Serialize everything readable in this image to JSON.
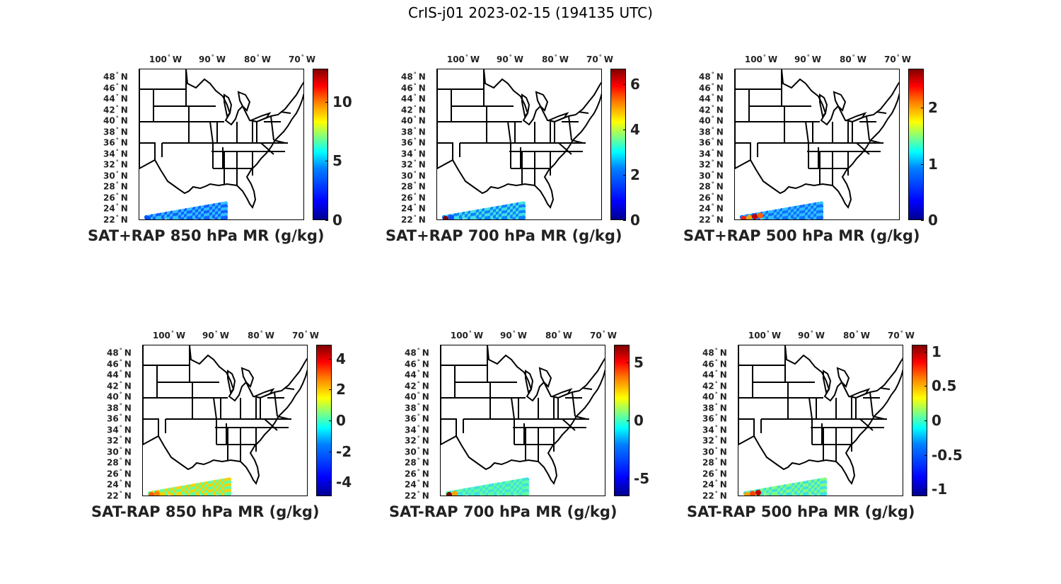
{
  "title": "CrIS-j01 2023-02-15 (194135 UTC)",
  "lon_ticks": [
    "100",
    "90",
    "80",
    "70"
  ],
  "lon_suffix": "W",
  "lat_ticks": [
    "48",
    "46",
    "44",
    "42",
    "40",
    "38",
    "36",
    "34",
    "32",
    "30",
    "28",
    "26",
    "24",
    "22"
  ],
  "lat_suffix": "N",
  "panels": [
    {
      "label": "SAT+RAP 850 hPa MR (g/kg)",
      "cbar_ticks": [
        "10",
        "5",
        "0"
      ],
      "cbar_values": [
        10,
        5,
        0
      ],
      "cbar_range": [
        0,
        12.8
      ]
    },
    {
      "label": "SAT+RAP 700 hPa MR (g/kg)",
      "cbar_ticks": [
        "6",
        "4",
        "2",
        "0"
      ],
      "cbar_values": [
        6,
        4,
        2,
        0
      ],
      "cbar_range": [
        0,
        6.7
      ]
    },
    {
      "label": "SAT+RAP 500 hPa MR (g/kg)",
      "cbar_ticks": [
        "2",
        "1",
        "0"
      ],
      "cbar_values": [
        2,
        1,
        0
      ],
      "cbar_range": [
        0,
        2.7
      ]
    },
    {
      "label": "SAT-RAP 850 hPa MR (g/kg)",
      "cbar_ticks": [
        "4",
        "2",
        "0",
        "-2",
        "-4"
      ],
      "cbar_values": [
        4,
        2,
        0,
        -2,
        -4
      ],
      "cbar_range": [
        -4.9,
        4.9
      ]
    },
    {
      "label": "SAT-RAP 700 hPa MR (g/kg)",
      "cbar_ticks": [
        "5",
        "0",
        "-5"
      ],
      "cbar_values": [
        5,
        0,
        -5
      ],
      "cbar_range": [
        -6.5,
        6.5
      ]
    },
    {
      "label": "SAT-RAP 500 hPa MR (g/kg)",
      "cbar_ticks": [
        "1",
        "0.5",
        "0",
        "-0.5",
        "-1"
      ],
      "cbar_values": [
        1,
        0.5,
        0,
        -0.5,
        -1
      ],
      "cbar_range": [
        -1.1,
        1.1
      ]
    }
  ]
}
